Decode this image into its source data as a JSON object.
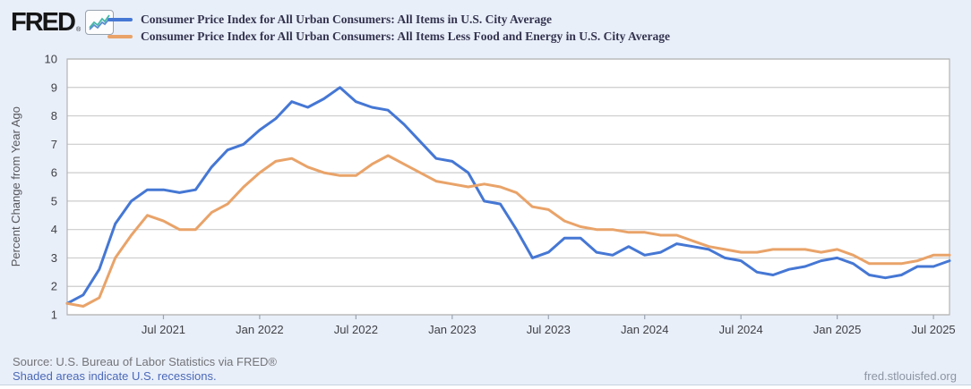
{
  "brand": {
    "logo_text": "FRED",
    "registered_mark": "®"
  },
  "legend": [
    {
      "label": "Consumer Price Index for All Urban Consumers: All Items in U.S. City Average",
      "color": "#4577d4"
    },
    {
      "label": "Consumer Price Index for All Urban Consumers: All Items Less Food and Energy in U.S. City Average",
      "color": "#e9a369"
    }
  ],
  "chart_data": {
    "type": "line",
    "title": "",
    "xlabel": "",
    "ylabel": "Percent Change from Year Ago",
    "ylim": [
      1,
      10
    ],
    "y_ticks": [
      1,
      2,
      3,
      4,
      5,
      6,
      7,
      8,
      9,
      10
    ],
    "grid": "horizontal",
    "legend_position": "top-left",
    "x_start": "2021-01",
    "x_end": "2025-08",
    "x_tick_labels": [
      "Jul 2021",
      "Jan 2022",
      "Jul 2022",
      "Jan 2023",
      "Jul 2023",
      "Jan 2024",
      "Jul 2024",
      "Jan 2025",
      "Jul 2025"
    ],
    "x_tick_month_index": [
      6,
      12,
      18,
      24,
      30,
      36,
      42,
      48,
      54
    ],
    "series": [
      {
        "name": "Consumer Price Index for All Urban Consumers: All Items in U.S. City Average",
        "color": "#4577d4",
        "values": [
          1.4,
          1.7,
          2.6,
          4.2,
          5.0,
          5.4,
          5.4,
          5.3,
          5.4,
          6.2,
          6.8,
          7.0,
          7.5,
          7.9,
          8.5,
          8.3,
          8.6,
          9.0,
          8.5,
          8.3,
          8.2,
          7.7,
          7.1,
          6.5,
          6.4,
          6.0,
          5.0,
          4.9,
          4.0,
          3.0,
          3.2,
          3.7,
          3.7,
          3.2,
          3.1,
          3.4,
          3.1,
          3.2,
          3.5,
          3.4,
          3.3,
          3.0,
          2.9,
          2.5,
          2.4,
          2.6,
          2.7,
          2.9,
          3.0,
          2.8,
          2.4,
          2.3,
          2.4,
          2.7,
          2.7,
          2.9
        ]
      },
      {
        "name": "Consumer Price Index for All Urban Consumers: All Items Less Food and Energy in U.S. City Average",
        "color": "#e9a369",
        "values": [
          1.4,
          1.3,
          1.6,
          3.0,
          3.8,
          4.5,
          4.3,
          4.0,
          4.0,
          4.6,
          4.9,
          5.5,
          6.0,
          6.4,
          6.5,
          6.2,
          6.0,
          5.9,
          5.9,
          6.3,
          6.6,
          6.3,
          6.0,
          5.7,
          5.6,
          5.5,
          5.6,
          5.5,
          5.3,
          4.8,
          4.7,
          4.3,
          4.1,
          4.0,
          4.0,
          3.9,
          3.9,
          3.8,
          3.8,
          3.6,
          3.4,
          3.3,
          3.2,
          3.2,
          3.3,
          3.3,
          3.3,
          3.2,
          3.3,
          3.1,
          2.8,
          2.8,
          2.8,
          2.9,
          3.1,
          3.1
        ]
      }
    ]
  },
  "footer": {
    "source": "Source: U.S. Bureau of Labor Statistics via FRED®",
    "recession_note": "Shaded areas indicate U.S. recessions.",
    "site": "fred.stlouisfed.org"
  },
  "colors": {
    "background": "#e9eff9",
    "plot_background": "#ffffff",
    "grid_line": "#cccccc",
    "plot_border": "#b3b3b3",
    "tick_mark": "#9aa4b0",
    "tick_text": "#3f4045",
    "series_blue": "#4577d4",
    "series_orange": "#e9a369"
  }
}
